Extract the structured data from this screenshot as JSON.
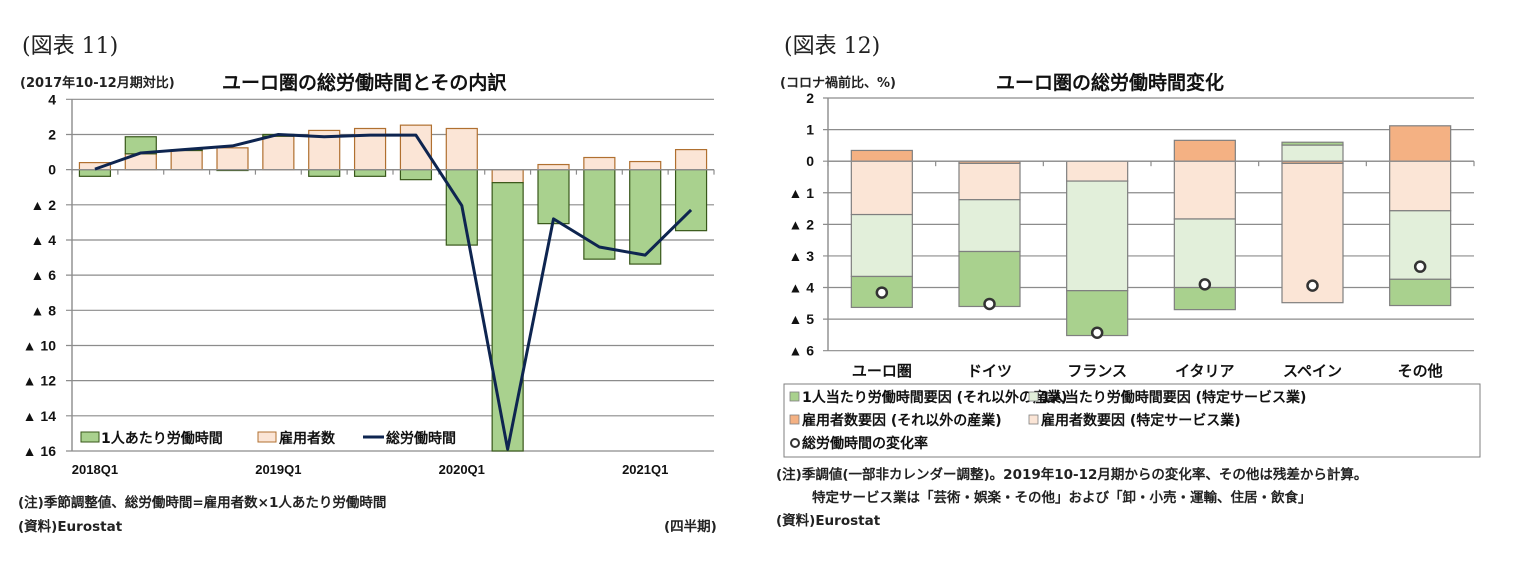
{
  "chart_data": [
    {
      "type": "bar",
      "figure_label": "(図表 11)",
      "title": "ユーロ圏の総労働時間とその内訳",
      "ylabel": "(2017年10-12月期対比)",
      "xlabel": "(四半期)",
      "ylim": [
        -16,
        4
      ],
      "yticks": [
        4,
        2,
        0,
        -2,
        -4,
        -6,
        -8,
        -10,
        -12,
        -14,
        -16
      ],
      "ytick_labels": [
        "4",
        "2",
        "0",
        "▲ 2",
        "▲ 4",
        "▲ 6",
        "▲ 8",
        "▲ 10",
        "▲ 12",
        "▲ 14",
        "▲ 16"
      ],
      "grid": true,
      "categories": [
        "2018Q1",
        "2018Q2",
        "2018Q3",
        "2018Q4",
        "2019Q1",
        "2019Q2",
        "2019Q3",
        "2019Q4",
        "2020Q1",
        "2020Q2",
        "2020Q3",
        "2020Q4",
        "2021Q1",
        "2021Q2"
      ],
      "xtick_labels": [
        {
          "index": 0,
          "label": "2018Q1"
        },
        {
          "index": 4,
          "label": "2019Q1"
        },
        {
          "index": 8,
          "label": "2020Q1"
        },
        {
          "index": 12,
          "label": "2021Q1"
        }
      ],
      "series": [
        {
          "name": "1人あたり労働時間",
          "kind": "bar",
          "color": "#a9d18e",
          "stroke": "#38571a",
          "values": [
            -0.38,
            0.97,
            0.02,
            -0.05,
            0.1,
            -0.38,
            -0.38,
            -0.57,
            -4.29,
            -15.26,
            -3.07,
            -5.09,
            -5.37,
            -3.47
          ]
        },
        {
          "name": "雇用者数",
          "kind": "bar",
          "color": "#fbe5d6",
          "stroke": "#b07030",
          "values": [
            0.4,
            0.9,
            1.1,
            1.24,
            1.9,
            2.23,
            2.34,
            2.53,
            2.34,
            -0.74,
            0.29,
            0.69,
            0.46,
            1.14
          ]
        },
        {
          "name": "総労働時間",
          "kind": "line",
          "color": "#0e2550",
          "values": [
            0.03,
            0.95,
            1.15,
            1.35,
            2.0,
            1.87,
            1.96,
            1.96,
            -2.04,
            -15.9,
            -2.8,
            -4.4,
            -4.86,
            -2.29
          ]
        }
      ],
      "legend_position": "bottom-left"
    },
    {
      "type": "bar",
      "figure_label": "(図表 12)",
      "title": "ユーロ圏の総労働時間変化",
      "ylabel": "(コロナ禍前比、%)",
      "ylim": [
        -6,
        2
      ],
      "yticks": [
        2,
        1,
        0,
        -1,
        -2,
        -3,
        -4,
        -5,
        -6
      ],
      "ytick_labels": [
        "2",
        "1",
        "0",
        "▲ 1",
        "▲ 2",
        "▲ 3",
        "▲ 4",
        "▲ 5",
        "▲ 6"
      ],
      "grid": true,
      "categories": [
        "ユーロ圏",
        "ドイツ",
        "フランス",
        "イタリア",
        "スペイン",
        "その他"
      ],
      "series": [
        {
          "name": "1人当たり労働時間要因(それ以外の産業)",
          "kind": "bar",
          "color": "#a9d18e",
          "values": [
            -0.98,
            -1.74,
            -1.42,
            -0.7,
            0.09,
            -0.83
          ]
        },
        {
          "name": "1人当たり労働時間要因(特定サービス業)",
          "kind": "bar",
          "color": "#e2efda",
          "values": [
            -1.96,
            -1.64,
            -3.47,
            -2.17,
            0.51,
            -2.17
          ]
        },
        {
          "name": "雇用者数要因(それ以外の産業)",
          "kind": "bar",
          "color": "#f4b183",
          "values": [
            0.34,
            -0.07,
            0.0,
            0.66,
            -0.07,
            1.12
          ]
        },
        {
          "name": "雇用者数要因(特定サービス業)",
          "kind": "bar",
          "color": "#fbe5d6",
          "values": [
            -1.69,
            -1.15,
            -0.63,
            -1.83,
            -4.41,
            -1.57
          ]
        },
        {
          "name": "総労働時間の変化率",
          "kind": "marker",
          "color": "#ffffff",
          "values": [
            -4.16,
            -4.52,
            -5.43,
            -3.9,
            -3.94,
            -3.34
          ]
        }
      ],
      "legend_position": "bottom"
    }
  ],
  "left": {
    "fig_label": "(図表 11)",
    "unit": "(2017年10-12月期対比)",
    "title": "ユーロ圏の総労働時間とその内訳",
    "legend": [
      "1人あたり労働時間",
      "雇用者数",
      "総労働時間"
    ],
    "note": "(注)季節調整値、総労働時間=雇用者数×1人あたり労働時間",
    "source": "(資料)Eurostat",
    "period": "(四半期)"
  },
  "right": {
    "fig_label": "(図表 12)",
    "unit": "(コロナ禍前比、%)",
    "title": "ユーロ圏の総労働時間変化",
    "legend": [
      "1人当たり労働時間要因 (それ以外の産業)",
      "1人当たり労働時間要因 (特定サービス業)",
      "雇用者数要因 (それ以外の産業)",
      "雇用者数要因 (特定サービス業)",
      "総労働時間の変化率"
    ],
    "note1": "(注)季調値(一部非カレンダー調整)。2019年10-12月期からの変化率、その他は残差から計算。",
    "note2": "特定サービス業は「芸術・娯楽・その他」および「卸・小売・運輸、住居・飲食」",
    "source": "(資料)Eurostat"
  }
}
